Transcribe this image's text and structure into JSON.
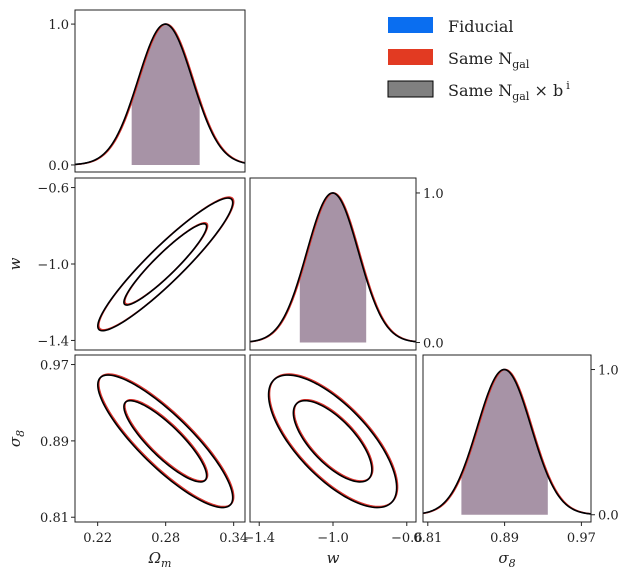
{
  "chart_data": {
    "type": "corner",
    "parameters": [
      {
        "name": "Omega_m",
        "label": "Ω",
        "label_sub": "m",
        "range": [
          0.2,
          0.35
        ],
        "ticks": [
          0.22,
          0.28,
          0.34
        ],
        "tick_labels": [
          "0.22",
          "0.28",
          "0.34"
        ],
        "mean": 0.28,
        "sigma": 0.024,
        "band": [
          0.25,
          0.31
        ]
      },
      {
        "name": "w",
        "label": "w",
        "label_sub": "",
        "range": [
          -1.45,
          -0.55
        ],
        "ticks": [
          -1.4,
          -1.0,
          -0.6
        ],
        "tick_labels": [
          "−1.4",
          "−1.0",
          "−0.6"
        ],
        "mean": -1.0,
        "sigma": 0.14,
        "band": [
          -1.18,
          -0.82
        ]
      },
      {
        "name": "sigma_8",
        "label": "σ",
        "label_sub": "8",
        "range": [
          0.805,
          0.98
        ],
        "ticks": [
          0.81,
          0.89,
          0.97
        ],
        "tick_labels": [
          "0.81",
          "0.89",
          "0.97"
        ],
        "mean": 0.89,
        "sigma": 0.028,
        "band": [
          0.845,
          0.935
        ]
      }
    ],
    "pdf_ticks": [
      0.0,
      1.0
    ],
    "pdf_tick_labels": [
      "0.0",
      "1.0"
    ],
    "pdf_ylim": [
      -0.05,
      1.1
    ],
    "correlations": {
      "w_vs_Omega_m": 0.93,
      "sigma_8_vs_Omega_m": -0.85,
      "sigma_8_vs_w": -0.7
    },
    "contour_levels_sigma": [
      1,
      2
    ],
    "series": [
      {
        "name": "Fiducial",
        "name_sub": "",
        "name_tail": "",
        "color": "#1f6fe0",
        "swatch": "#0a6ef0",
        "offset": 0.0
      },
      {
        "name": "Same N",
        "name_sub": "gal",
        "name_tail": "",
        "color": "#d8322c",
        "swatch": "#e23a22",
        "offset": 0.02
      },
      {
        "name": "Same N",
        "name_sub": "gal",
        "name_tail": " × b",
        "name_sup": "i",
        "color": "#000000",
        "swatch": "#808080",
        "offset": -0.015
      }
    ],
    "band_color": "#a793a6"
  }
}
